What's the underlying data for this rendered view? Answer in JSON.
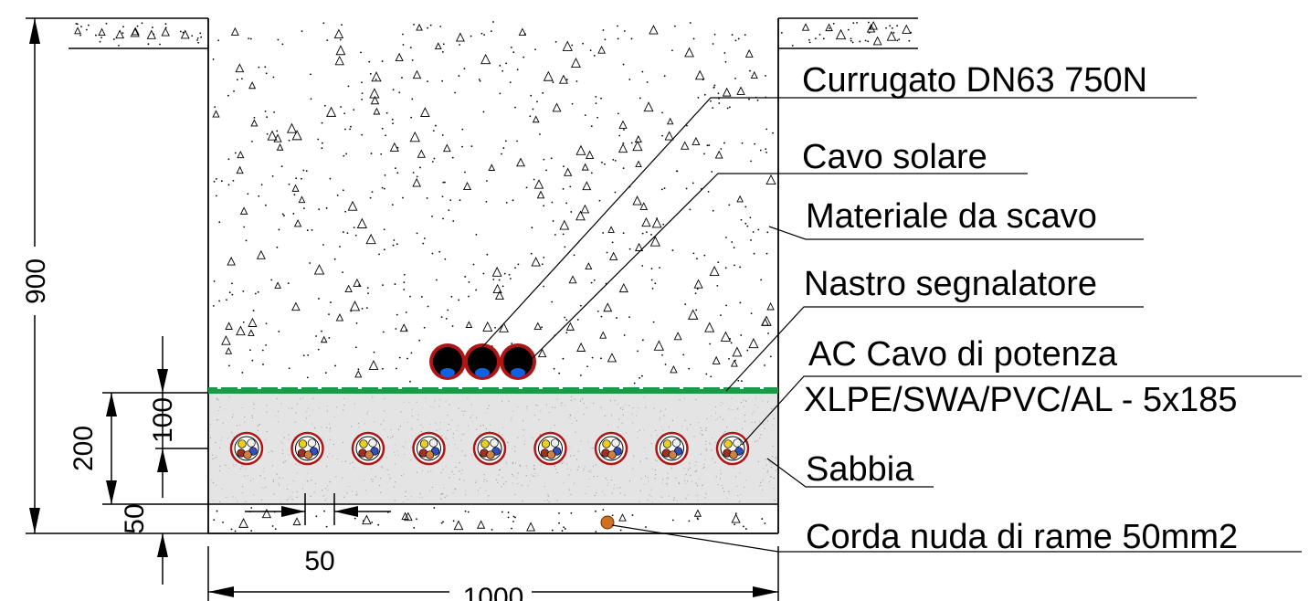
{
  "labels": {
    "corrugated_conduit": "Currugato DN63 750N",
    "solar_cable": "Cavo solare",
    "backfill": "Materiale da scavo",
    "warning_tape": "Nastro segnalatore",
    "power_cable_line1": "AC Cavo di potenza",
    "power_cable_line2": "XLPE/SWA/PVC/AL - 5x185",
    "sand": "Sabbia",
    "earth_conductor": "Corda nuda di rame 50mm2"
  },
  "dimensions": {
    "total_depth": "900",
    "sand_layer": "200",
    "cable_cover": "100",
    "bottom_layer": "50",
    "cable_spacing": "50",
    "trench_width": "1000"
  },
  "colors": {
    "warning_tape": "#1a9a48",
    "cable_sheath": "#b01515",
    "conduit_fill": "#000000",
    "conduit_core": "#1060e0",
    "earth_conductor": "#d07020",
    "sand_fill": "#e4e4e4",
    "lines": "#000000"
  },
  "components": {
    "power_cable_count": 9,
    "conduit_count": 3,
    "power_cable_core_colors": [
      "#e8d020",
      "#f0f0f0",
      "#3050c0",
      "#a03020",
      "#d08040"
    ]
  }
}
